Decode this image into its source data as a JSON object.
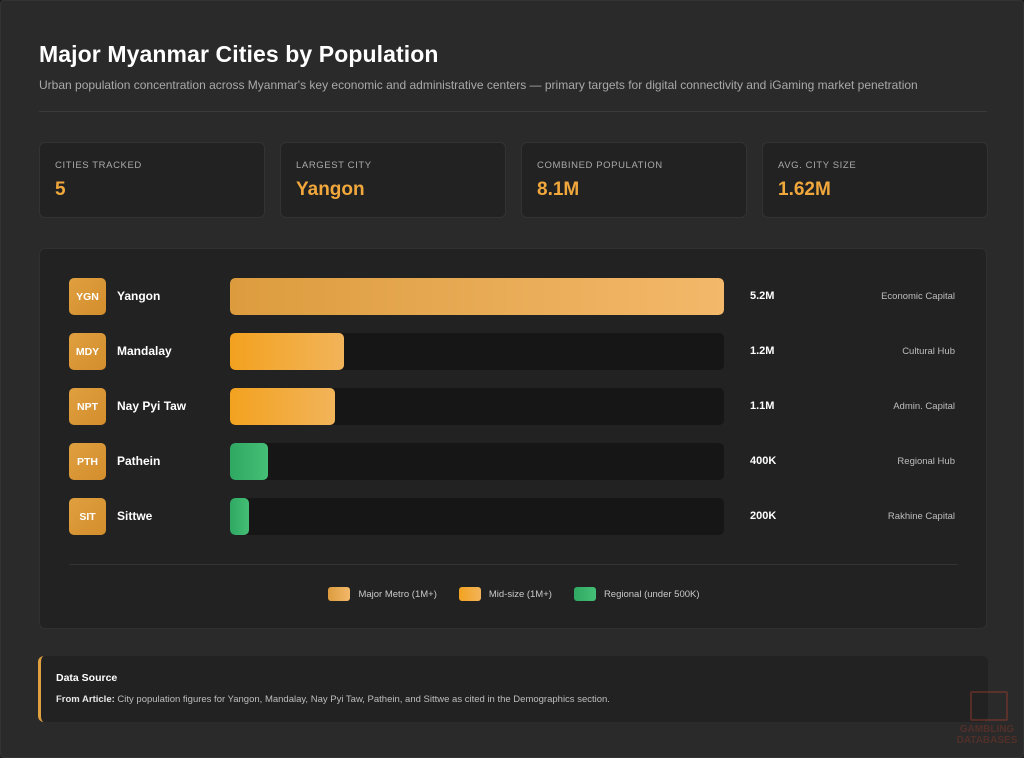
{
  "header": {
    "title": "Major Myanmar Cities by Population",
    "subtitle": "Urban population concentration across Myanmar's key economic and administrative centers — primary targets for digital connectivity and iGaming market penetration"
  },
  "stats": [
    {
      "label": "CITIES TRACKED",
      "value": "5"
    },
    {
      "label": "LARGEST CITY",
      "value": "Yangon"
    },
    {
      "label": "COMBINED POPULATION",
      "value": "8.1M"
    },
    {
      "label": "AVG. CITY SIZE",
      "value": "1.62M"
    }
  ],
  "chart_data": {
    "type": "bar",
    "orientation": "horizontal",
    "categories": [
      "Yangon",
      "Mandalay",
      "Nay Pyi Taw",
      "Pathein",
      "Sittwe"
    ],
    "codes": [
      "YGN",
      "MDY",
      "NPT",
      "PTH",
      "SIT"
    ],
    "values": [
      5.2,
      1.2,
      1.1,
      0.4,
      0.2
    ],
    "value_labels": [
      "5.2M",
      "1.2M",
      "1.1M",
      "400K",
      "200K"
    ],
    "roles": [
      "Economic Capital",
      "Cultural Hub",
      "Admin. Capital",
      "Regional Hub",
      "Rakhine Capital"
    ],
    "groups": [
      "major",
      "mid",
      "mid",
      "regional",
      "regional"
    ],
    "xlim": [
      0,
      5.2
    ],
    "legend": [
      {
        "key": "major",
        "label": "Major Metro (1M+)"
      },
      {
        "key": "mid",
        "label": "Mid-size (1M+)"
      },
      {
        "key": "regional",
        "label": "Regional (under 500K)"
      }
    ],
    "legend_position": "bottom-center",
    "colors": {
      "major": "#f3b86a",
      "mid": "#f3a21f",
      "regional": "#2fa862"
    }
  },
  "source": {
    "heading": "Data Source",
    "prefix": "From Article:",
    "text": "City population figures for Yangon, Mandalay, Nay Pyi Taw, Pathein, and Sittwe as cited in the Demographics section."
  },
  "watermark": {
    "line1": "GAMBLING",
    "line2": "DATABASES"
  }
}
